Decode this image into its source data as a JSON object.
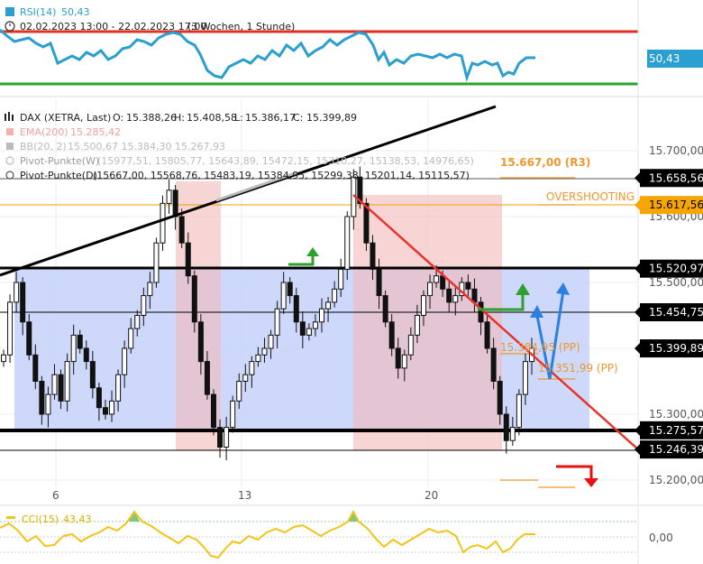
{
  "rsi_panel": {
    "title": "RSI(14)",
    "value": "50,43",
    "period": "02.02.2023 13:00 - 22.02.2023 17:00",
    "range": "(3 Wochen, 1 Stunde)",
    "tag": "50,43",
    "upper_color": "#e03020",
    "lower_color": "#2ea02e",
    "line_color": "#2a9fd0"
  },
  "main_legend": {
    "instrument": "DAX (XETRA, Last)",
    "o_label": "O:",
    "o_value": "15.388,26",
    "h_label": "H:",
    "h_value": "15.408,58",
    "l_label": "L:",
    "l_value": "15.386,17",
    "c_label": "C:",
    "c_value": "15.399,89",
    "ema_name": "EMA(200)",
    "ema_value": "15.285,42",
    "bb_name": "BB(20, 2)",
    "bb_values": "15.500,67  15.384,30  15.267,93",
    "pivot_w_name": "Pivot-Punkte(W)",
    "pivot_w_values": "(15977,51,  15805,77,  15643,89,  15472,15,  15310,27,  15138,53,  14976,65)",
    "pivot_d_name": "Pivot-Punkte(D)",
    "pivot_d_values": "(15667,00,  15568,76,  15483,19,  15384,95,  15299,38,  15201,14,  15115,57)"
  },
  "annotations": {
    "r3_label": "15.667,00 (R3)",
    "overshooting": "OVERSHOOTING",
    "pp1_label": "15.384,95 (PP)",
    "pp2_label": "15.351,99 (PP)"
  },
  "price_tags": [
    {
      "label": "15.658,56",
      "value": 15658.56,
      "style": "black"
    },
    {
      "label": "15.617,56",
      "value": 15617.56,
      "style": "orange"
    },
    {
      "label": "15.520,97",
      "value": 15520.97,
      "style": "black"
    },
    {
      "label": "15.454,75",
      "value": 15454.75,
      "style": "black"
    },
    {
      "label": "15.399,89",
      "value": 15399.89,
      "style": "black"
    },
    {
      "label": "15.275,57",
      "value": 15275.57,
      "style": "black"
    },
    {
      "label": "15.246,39",
      "value": 15246.39,
      "style": "black"
    }
  ],
  "cci_panel": {
    "title": "CCI(15)",
    "value": "43,43",
    "zero_label": "0,00",
    "line_color": "#f0c419"
  },
  "chart_data": {
    "type": "candlestick",
    "instrument": "DAX (XETRA, Last)",
    "interval": "1 Stunde",
    "x_ticks": [
      "6",
      "13",
      "20"
    ],
    "y_ticks": [
      15700,
      15600,
      15500,
      15400,
      15300,
      15200
    ],
    "y_tick_labels": [
      "15.700,00",
      "15.600,00",
      "15.500,00",
      "15.400,00",
      "15.300,00",
      "15.200,00"
    ],
    "ylim": [
      15175,
      15775
    ],
    "grid": true,
    "support_resistance": [
      15520.97,
      15454.75,
      15275.57,
      15246.39,
      15658.56,
      15617.56
    ],
    "range_band": [
      15275.57,
      15520.97
    ],
    "closes": [
      15390,
      15470,
      15500,
      15440,
      15390,
      15350,
      15300,
      15330,
      15360,
      15320,
      15380,
      15420,
      15400,
      15380,
      15340,
      15310,
      15300,
      15320,
      15360,
      15400,
      15430,
      15450,
      15480,
      15500,
      15560,
      15620,
      15640,
      15600,
      15560,
      15510,
      15440,
      15380,
      15330,
      15280,
      15250,
      15280,
      15320,
      15350,
      15360,
      15380,
      15390,
      15400,
      15420,
      15460,
      15500,
      15480,
      15440,
      15420,
      15430,
      15440,
      15460,
      15470,
      15490,
      15520,
      15600,
      15660,
      15620,
      15560,
      15520,
      15480,
      15440,
      15400,
      15370,
      15390,
      15420,
      15450,
      15480,
      15500,
      15510,
      15490,
      15470,
      15480,
      15500,
      15490,
      15470,
      15440,
      15400,
      15350,
      15300,
      15260,
      15280,
      15330,
      15380,
      15400
    ]
  }
}
